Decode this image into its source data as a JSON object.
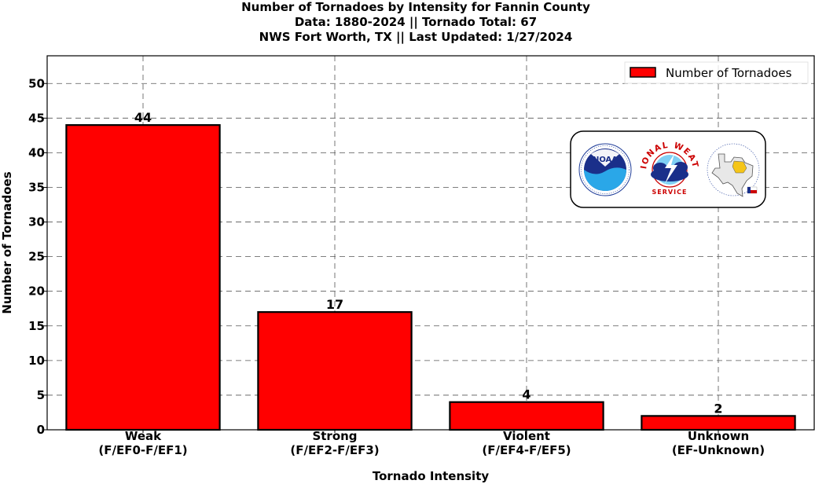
{
  "chart_data": {
    "type": "bar",
    "title_lines": [
      "Number of Tornadoes by Intensity for Fannin County",
      "Data: 1880-2024 || Tornado Total: 67",
      "NWS Fort Worth, TX || Last Updated: 1/27/2024"
    ],
    "categories": [
      [
        "Weak",
        "(F/EF0-F/EF1)"
      ],
      [
        "Strong",
        "(F/EF2-F/EF3)"
      ],
      [
        "Violent",
        "(F/EF4-F/EF5)"
      ],
      [
        "Unknown",
        "(EF-Unknown)"
      ]
    ],
    "values": [
      44,
      17,
      4,
      2
    ],
    "series_name": "Number of Tornadoes",
    "xlabel": "Tornado Intensity",
    "ylabel": "Number of Tornadoes",
    "ylim": [
      0,
      54
    ],
    "yticks": [
      0,
      5,
      10,
      15,
      20,
      25,
      30,
      35,
      40,
      45,
      50
    ],
    "grid": true,
    "legend_position": "top-right",
    "bar_color": "#ff0000",
    "edge_color": "#000000",
    "logos": {
      "noaa": "NOAA",
      "nws_arc": "NATIONAL WEATHER",
      "nws_sub": "SERVICE"
    }
  }
}
